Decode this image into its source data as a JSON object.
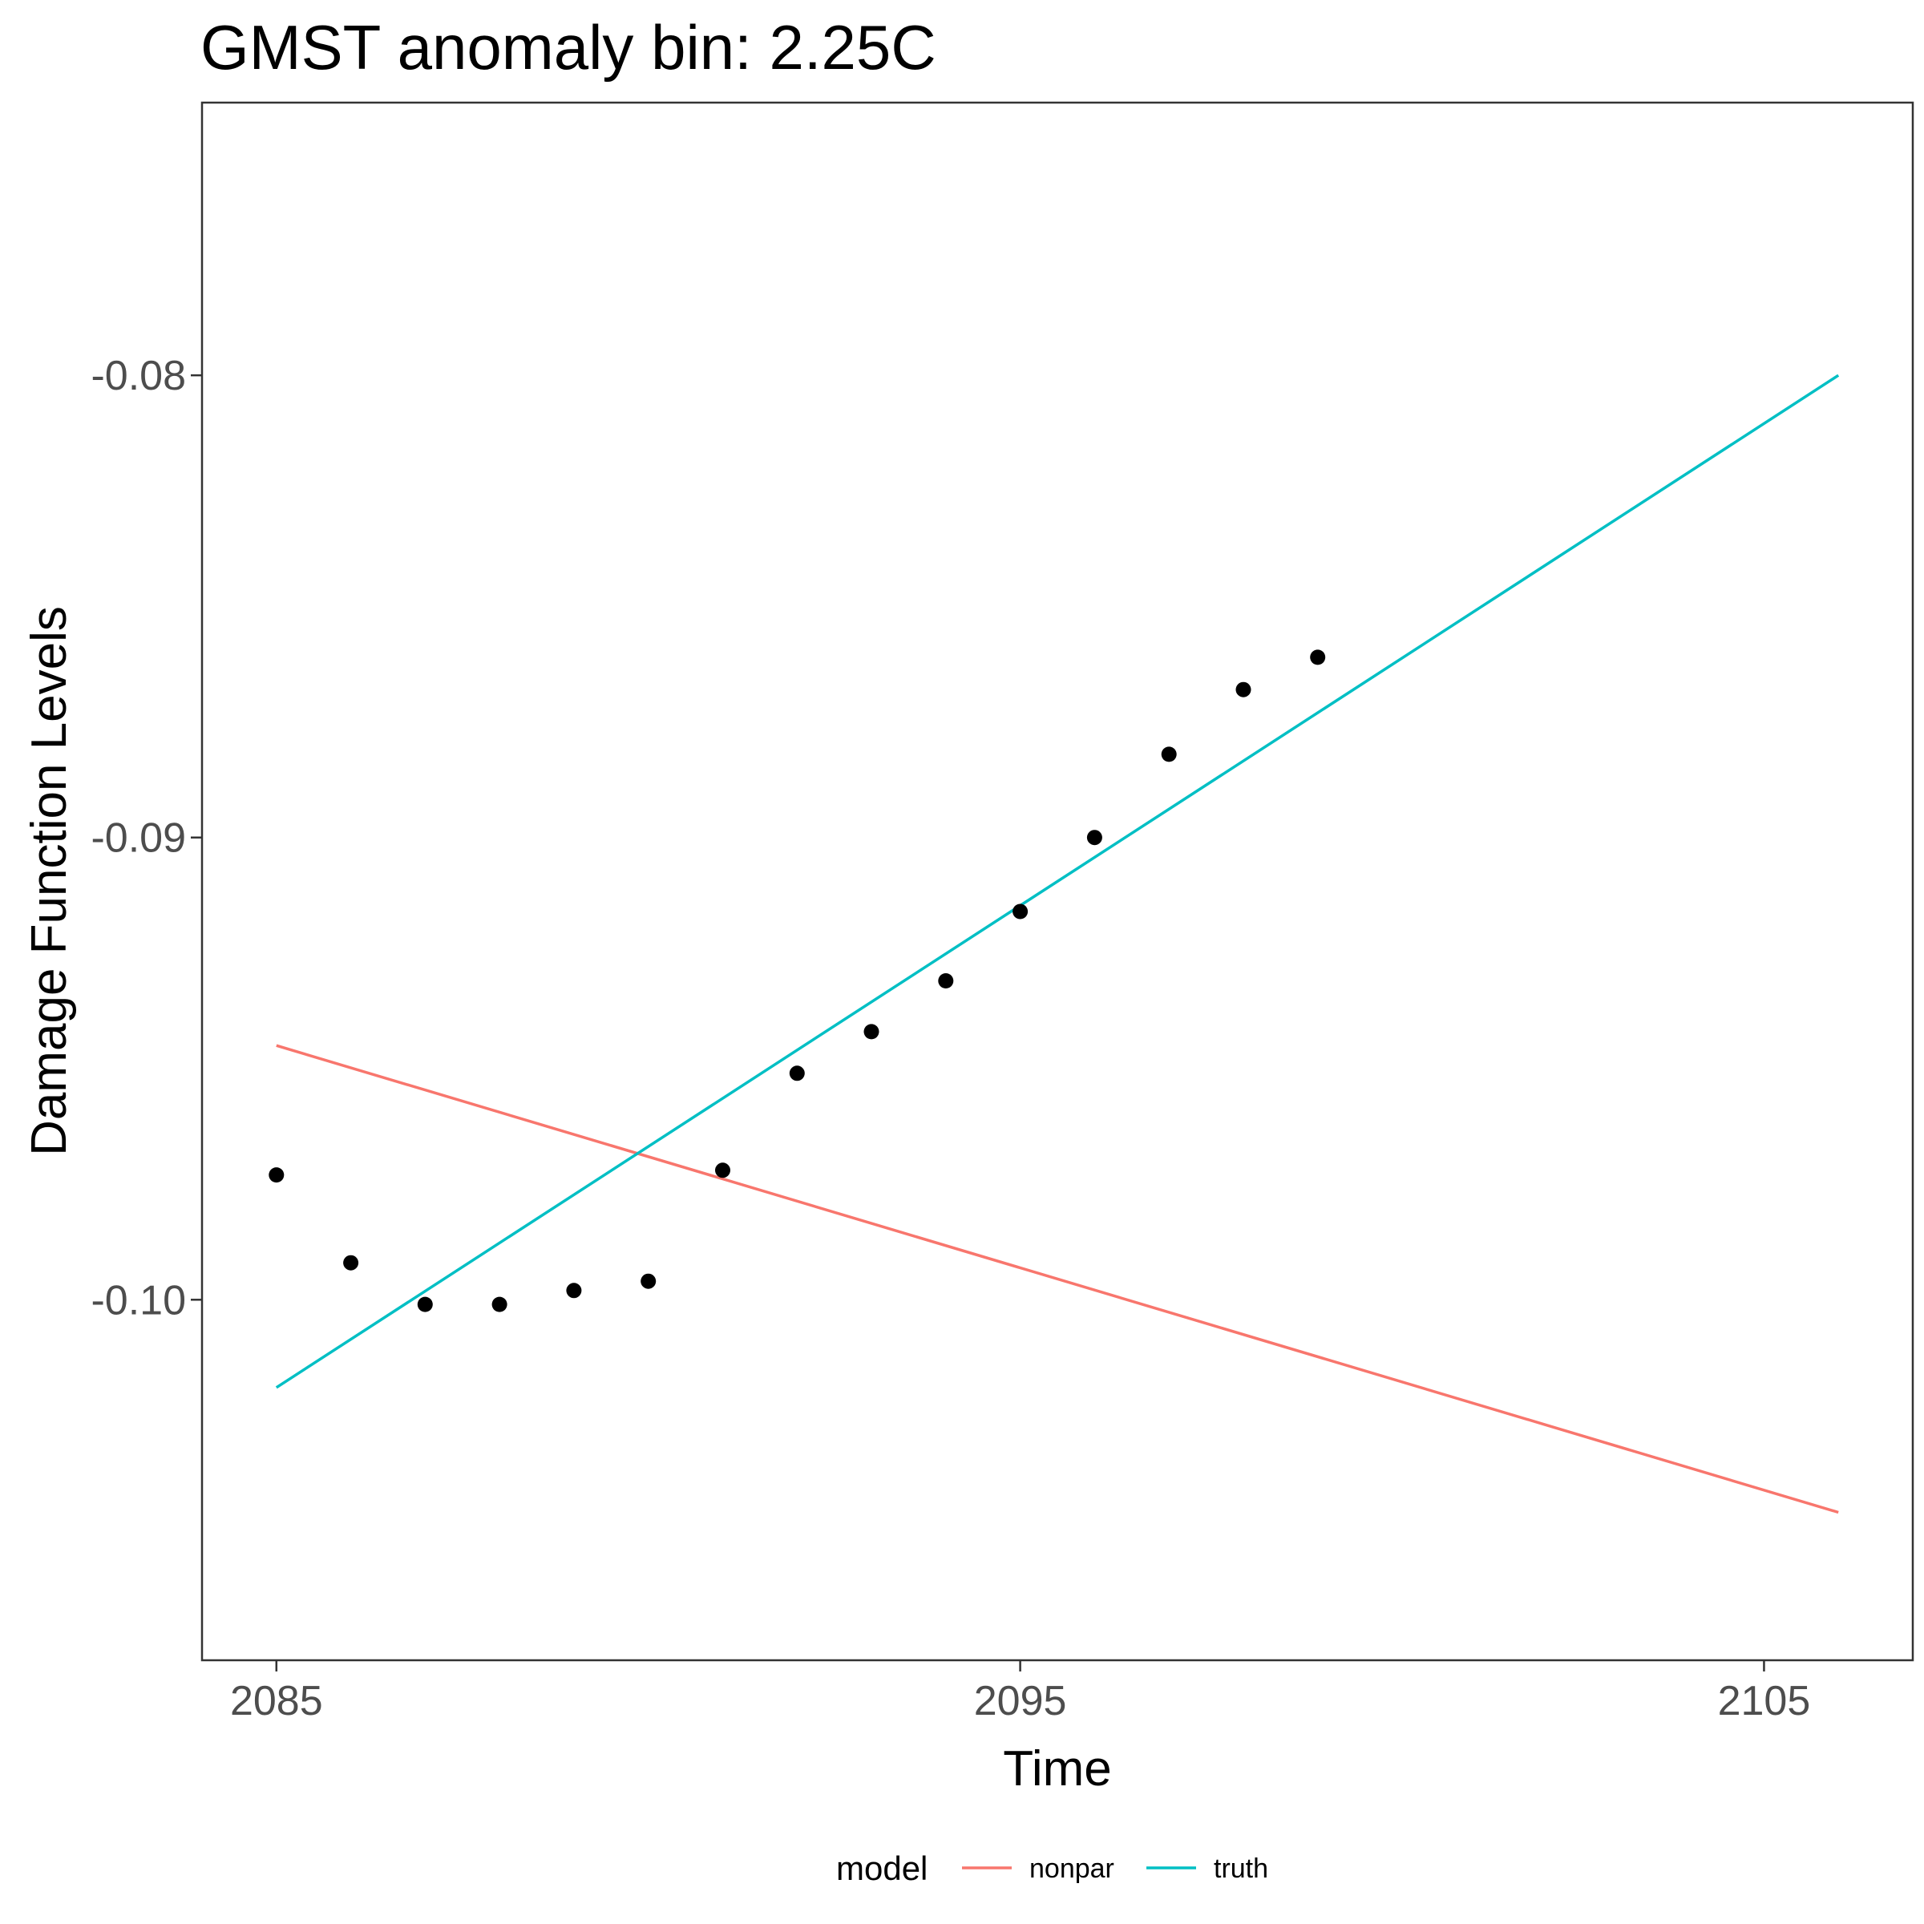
{
  "chart_data": {
    "type": "line",
    "title": "GMST anomaly bin: 2.25C",
    "xlabel": "Time",
    "ylabel": "Damage Function Levels",
    "xlim": [
      2084,
      2107
    ],
    "ylim": [
      -0.1078,
      -0.0741
    ],
    "x_ticks": [
      {
        "value": 2085,
        "label": "2085"
      },
      {
        "value": 2095,
        "label": "2095"
      },
      {
        "value": 2105,
        "label": "2105"
      }
    ],
    "y_ticks": [
      {
        "value": -0.08,
        "label": "-0.08"
      },
      {
        "value": -0.09,
        "label": "-0.09"
      },
      {
        "value": -0.1,
        "label": "-0.10"
      }
    ],
    "grid": false,
    "legend": {
      "title": "model",
      "position": "bottom",
      "entries": [
        {
          "label": "nonpar",
          "color": "#F8766D"
        },
        {
          "label": "truth",
          "color": "#00BFC4"
        }
      ]
    },
    "series": [
      {
        "name": "nonpar",
        "color": "#F8766D",
        "x": [
          2085,
          2106
        ],
        "y": [
          -0.0945,
          -0.1046
        ]
      },
      {
        "name": "truth",
        "color": "#00BFC4",
        "x": [
          2085,
          2106
        ],
        "y": [
          -0.1019,
          -0.08
        ]
      }
    ],
    "points": {
      "color": "#000000",
      "x": [
        2085,
        2086,
        2087,
        2088,
        2089,
        2090,
        2091,
        2092,
        2093,
        2094,
        2095,
        2096,
        2097,
        2098,
        2099
      ],
      "y": [
        -0.0973,
        -0.0992,
        -0.1001,
        -0.1001,
        -0.0998,
        -0.0996,
        -0.0972,
        -0.0951,
        -0.0942,
        -0.0931,
        -0.0916,
        -0.09,
        -0.0882,
        -0.0868,
        -0.0861
      ]
    }
  }
}
